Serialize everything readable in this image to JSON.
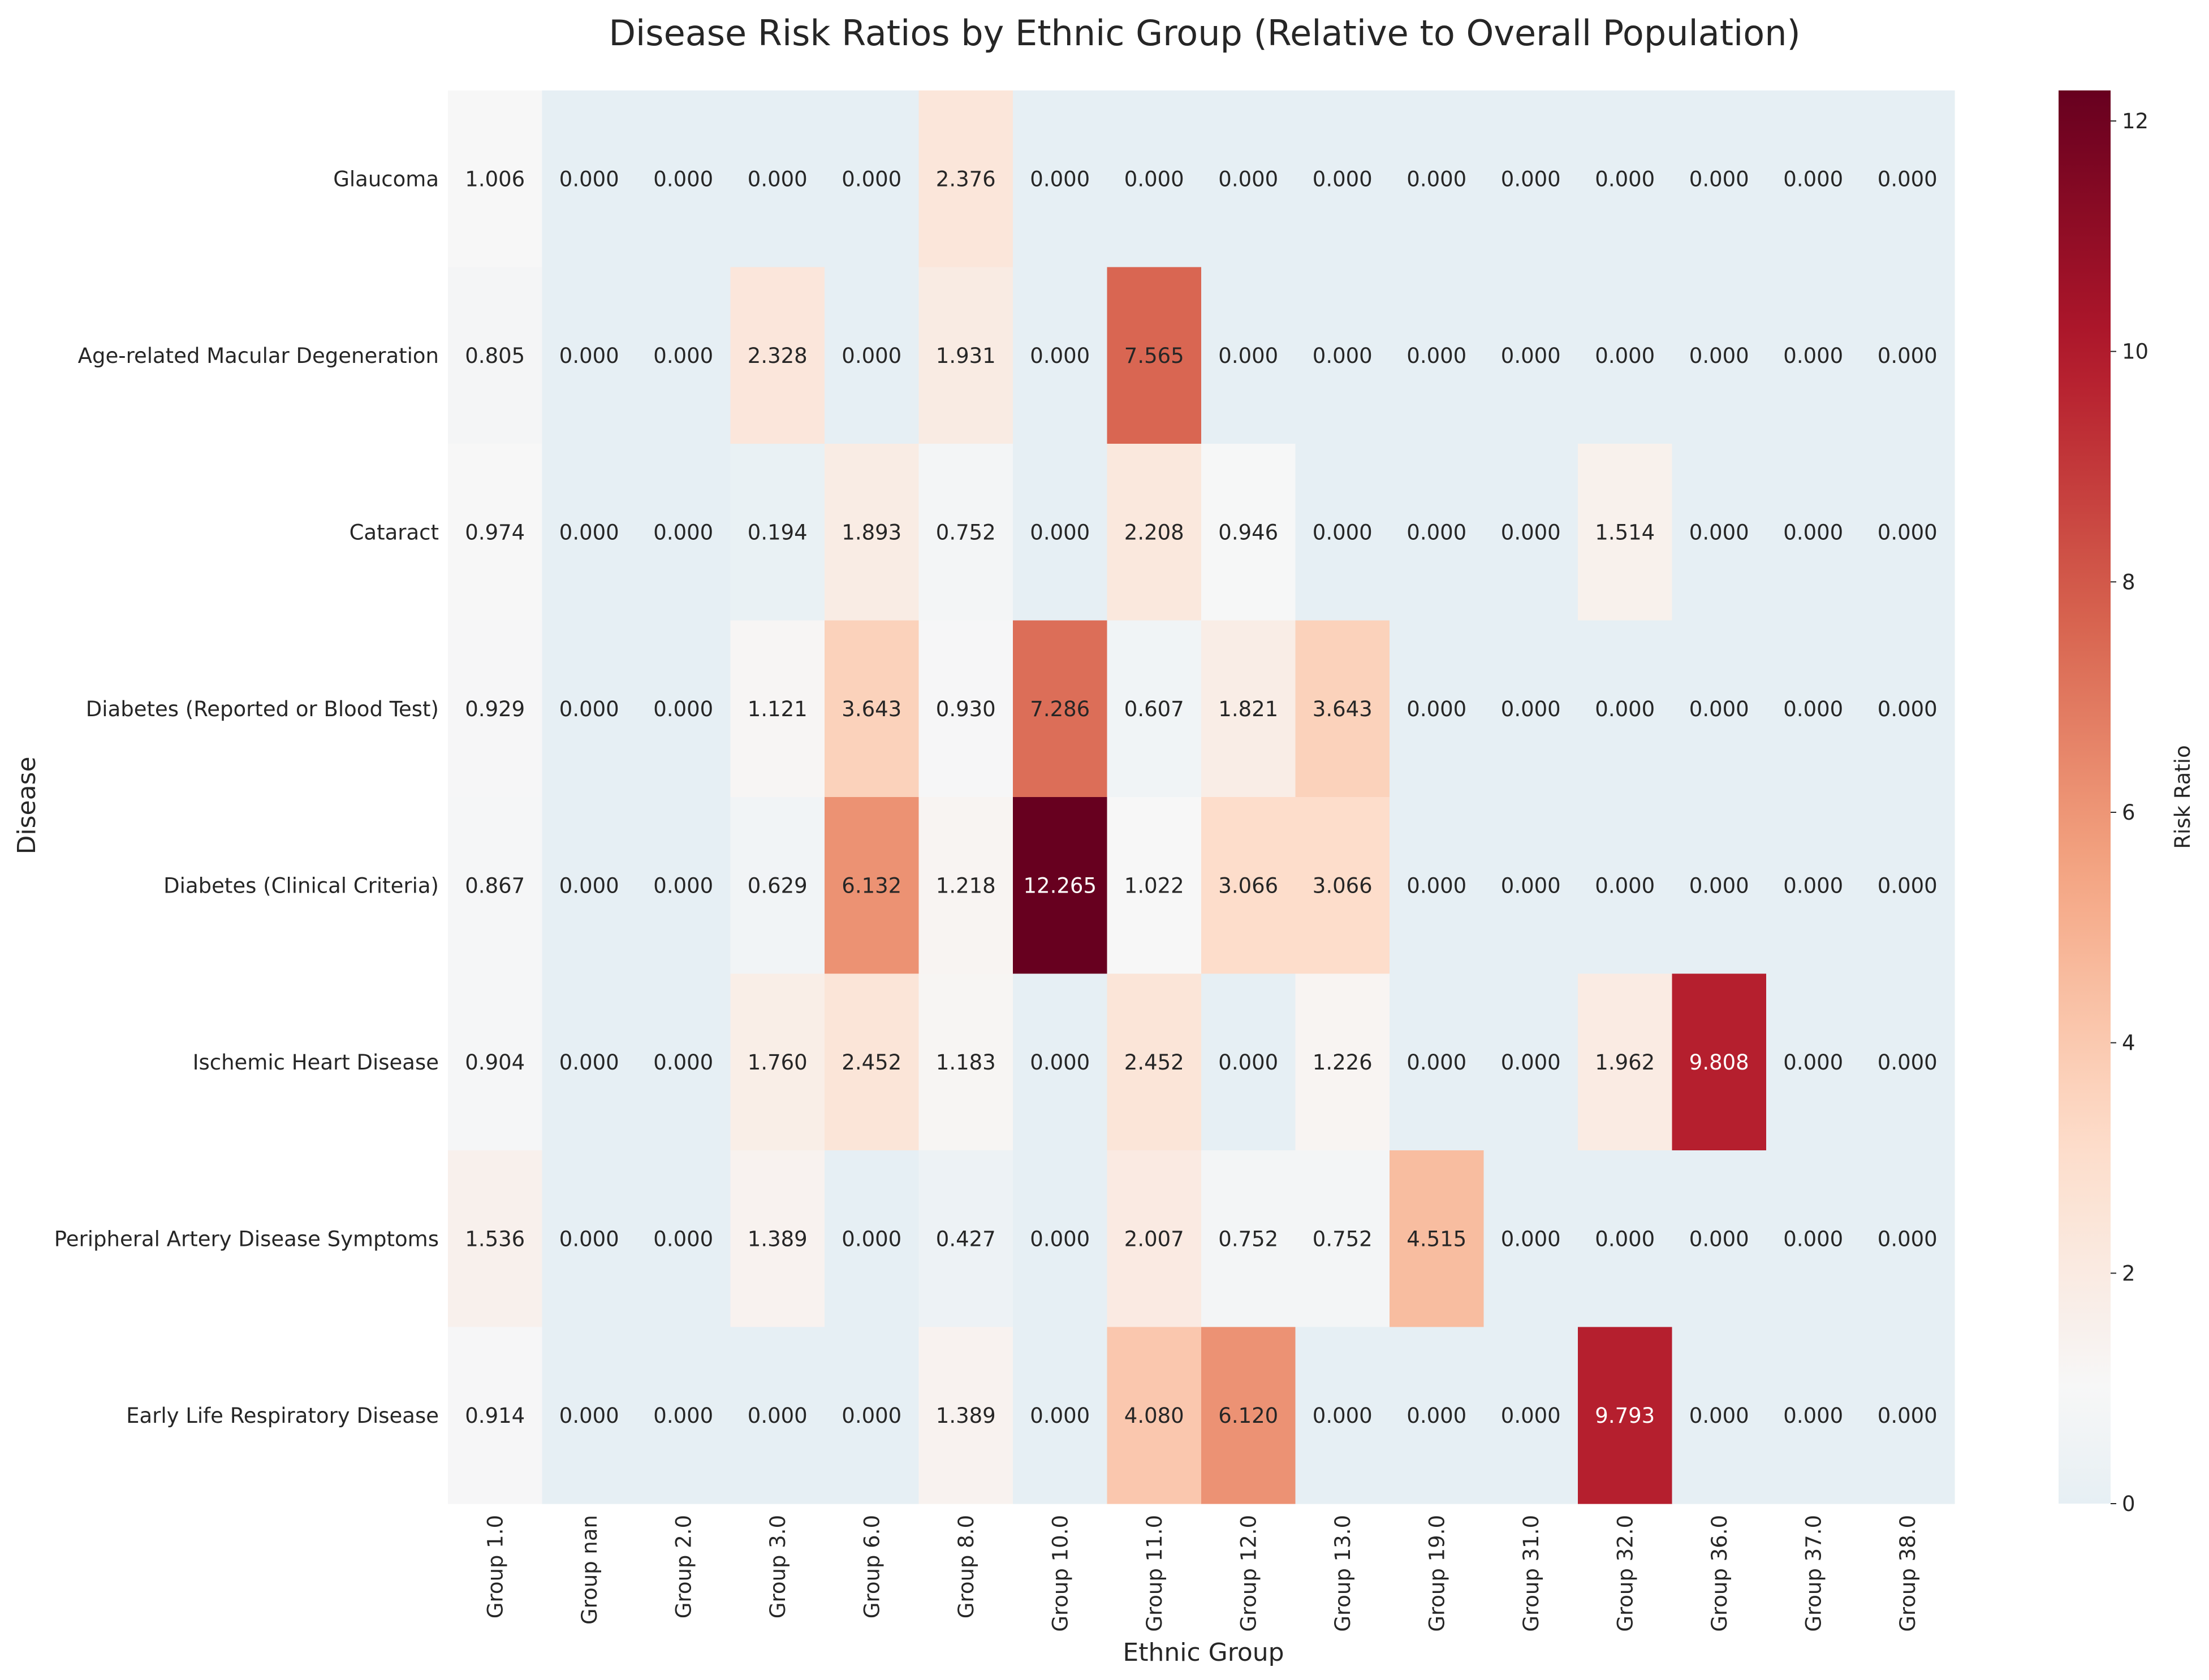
{
  "chart_data": {
    "type": "heatmap",
    "title": "Disease Risk Ratios by Ethnic Group (Relative to Overall Population)",
    "xlabel": "Ethnic Group",
    "ylabel": "Disease",
    "colorbar_label": "Risk Ratio",
    "colorbar_range": [
      0,
      12.265
    ],
    "colorbar_ticks": [
      "0",
      "2",
      "4",
      "6",
      "8",
      "10",
      "12"
    ],
    "colormap": "RdBu_r",
    "colormap_center": 1,
    "x_categories": [
      "Group 1.0",
      "Group nan",
      "Group 2.0",
      "Group 3.0",
      "Group 6.0",
      "Group 8.0",
      "Group 10.0",
      "Group 11.0",
      "Group 12.0",
      "Group 13.0",
      "Group 19.0",
      "Group 31.0",
      "Group 32.0",
      "Group 36.0",
      "Group 37.0",
      "Group 38.0"
    ],
    "y_categories": [
      "Glaucoma",
      "Age-related Macular Degeneration",
      "Cataract",
      "Diabetes (Reported or Blood Test)",
      "Diabetes (Clinical Criteria)",
      "Ischemic Heart Disease",
      "Peripheral Artery Disease Symptoms",
      "Early Life Respiratory Disease"
    ],
    "values": [
      [
        1.006,
        0.0,
        0.0,
        0.0,
        0.0,
        2.376,
        0.0,
        0.0,
        0.0,
        0.0,
        0.0,
        0.0,
        0.0,
        0.0,
        0.0,
        0.0
      ],
      [
        0.805,
        0.0,
        0.0,
        2.328,
        0.0,
        1.931,
        0.0,
        7.565,
        0.0,
        0.0,
        0.0,
        0.0,
        0.0,
        0.0,
        0.0,
        0.0
      ],
      [
        0.974,
        0.0,
        0.0,
        0.194,
        1.893,
        0.752,
        0.0,
        2.208,
        0.946,
        0.0,
        0.0,
        0.0,
        1.514,
        0.0,
        0.0,
        0.0
      ],
      [
        0.929,
        0.0,
        0.0,
        1.121,
        3.643,
        0.93,
        7.286,
        0.607,
        1.821,
        3.643,
        0.0,
        0.0,
        0.0,
        0.0,
        0.0,
        0.0
      ],
      [
        0.867,
        0.0,
        0.0,
        0.629,
        6.132,
        1.218,
        12.265,
        1.022,
        3.066,
        3.066,
        0.0,
        0.0,
        0.0,
        0.0,
        0.0,
        0.0
      ],
      [
        0.904,
        0.0,
        0.0,
        1.76,
        2.452,
        1.183,
        0.0,
        2.452,
        0.0,
        1.226,
        0.0,
        0.0,
        1.962,
        9.808,
        0.0,
        0.0
      ],
      [
        1.536,
        0.0,
        0.0,
        1.389,
        0.0,
        0.427,
        0.0,
        2.007,
        0.752,
        0.752,
        4.515,
        0.0,
        0.0,
        0.0,
        0.0,
        0.0
      ],
      [
        0.914,
        0.0,
        0.0,
        0.0,
        0.0,
        1.389,
        0.0,
        4.08,
        6.12,
        0.0,
        0.0,
        0.0,
        9.793,
        0.0,
        0.0,
        0.0
      ]
    ],
    "value_format": "3 decimals"
  }
}
